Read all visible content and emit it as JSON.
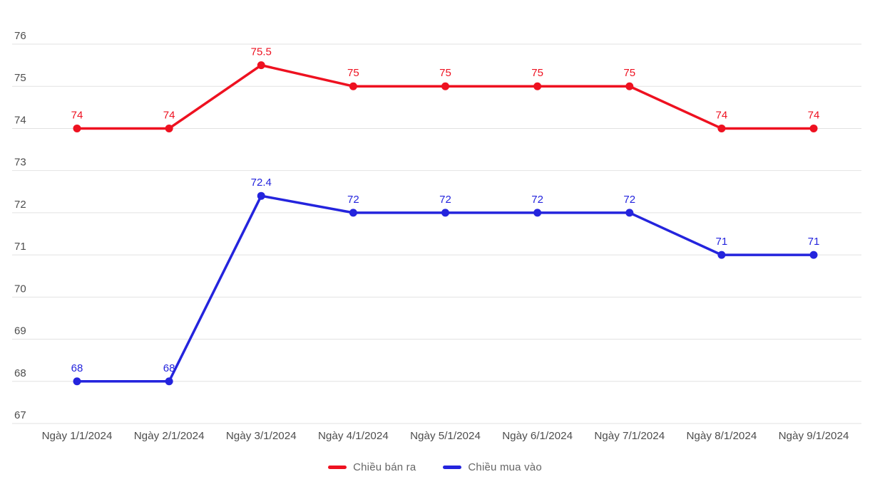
{
  "chart_data": {
    "type": "line",
    "categories": [
      "Ngày 1/1/2024",
      "Ngày 2/1/2024",
      "Ngày 3/1/2024",
      "Ngày 4/1/2024",
      "Ngày 5/1/2024",
      "Ngày 6/1/2024",
      "Ngày 7/1/2024",
      "Ngày 8/1/2024",
      "Ngày 9/1/2024"
    ],
    "series": [
      {
        "name": "Chiều bán ra",
        "color": "#ee1120",
        "values": [
          74,
          74,
          75.5,
          75,
          75,
          75,
          75,
          74,
          74
        ]
      },
      {
        "name": "Chiều mua vào",
        "color": "#2424dd",
        "values": [
          68,
          68,
          72.4,
          72,
          72,
          72,
          72,
          71,
          71
        ]
      }
    ],
    "title": "",
    "xlabel": "",
    "ylabel": "",
    "ylim": [
      67,
      76
    ],
    "yticks": [
      67,
      68,
      69,
      70,
      71,
      72,
      73,
      74,
      75,
      76
    ],
    "grid": true,
    "point_labels": true,
    "legend_position": "bottom"
  },
  "colors": {
    "background": "#ffffff",
    "gridline": "#e2e2e2",
    "axis_text": "#4d4d4d",
    "legend_text": "#666666"
  },
  "legend": {
    "items": [
      {
        "label": "Chiều bán ra"
      },
      {
        "label": "Chiều mua vào"
      }
    ]
  }
}
